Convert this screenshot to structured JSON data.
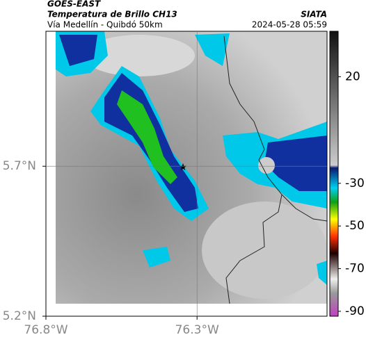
{
  "header": {
    "source": "GOES-EAST",
    "product": "Temperatura de Brillo CH13",
    "route": "Vía Medellín - Quibdó 50km",
    "agency": "SIATA",
    "timestamp": "2024-05-28 05:59"
  },
  "map": {
    "lonlim": [
      -76.8,
      -75.87
    ],
    "latlim": [
      5.2,
      6.15
    ],
    "lon_ticks": [
      {
        "value": -76.8,
        "label": "76.8°W"
      },
      {
        "value": -76.3,
        "label": "76.3°W"
      }
    ],
    "lat_ticks": [
      {
        "value": 5.7,
        "label": "5.7°N"
      },
      {
        "value": 5.2,
        "label": "5.2°N"
      }
    ],
    "grid": true
  },
  "colorbar": {
    "lim": [
      -92.3,
      41.3
    ],
    "ticks": [
      20,
      -30,
      -50,
      -70,
      -90
    ]
  }
}
